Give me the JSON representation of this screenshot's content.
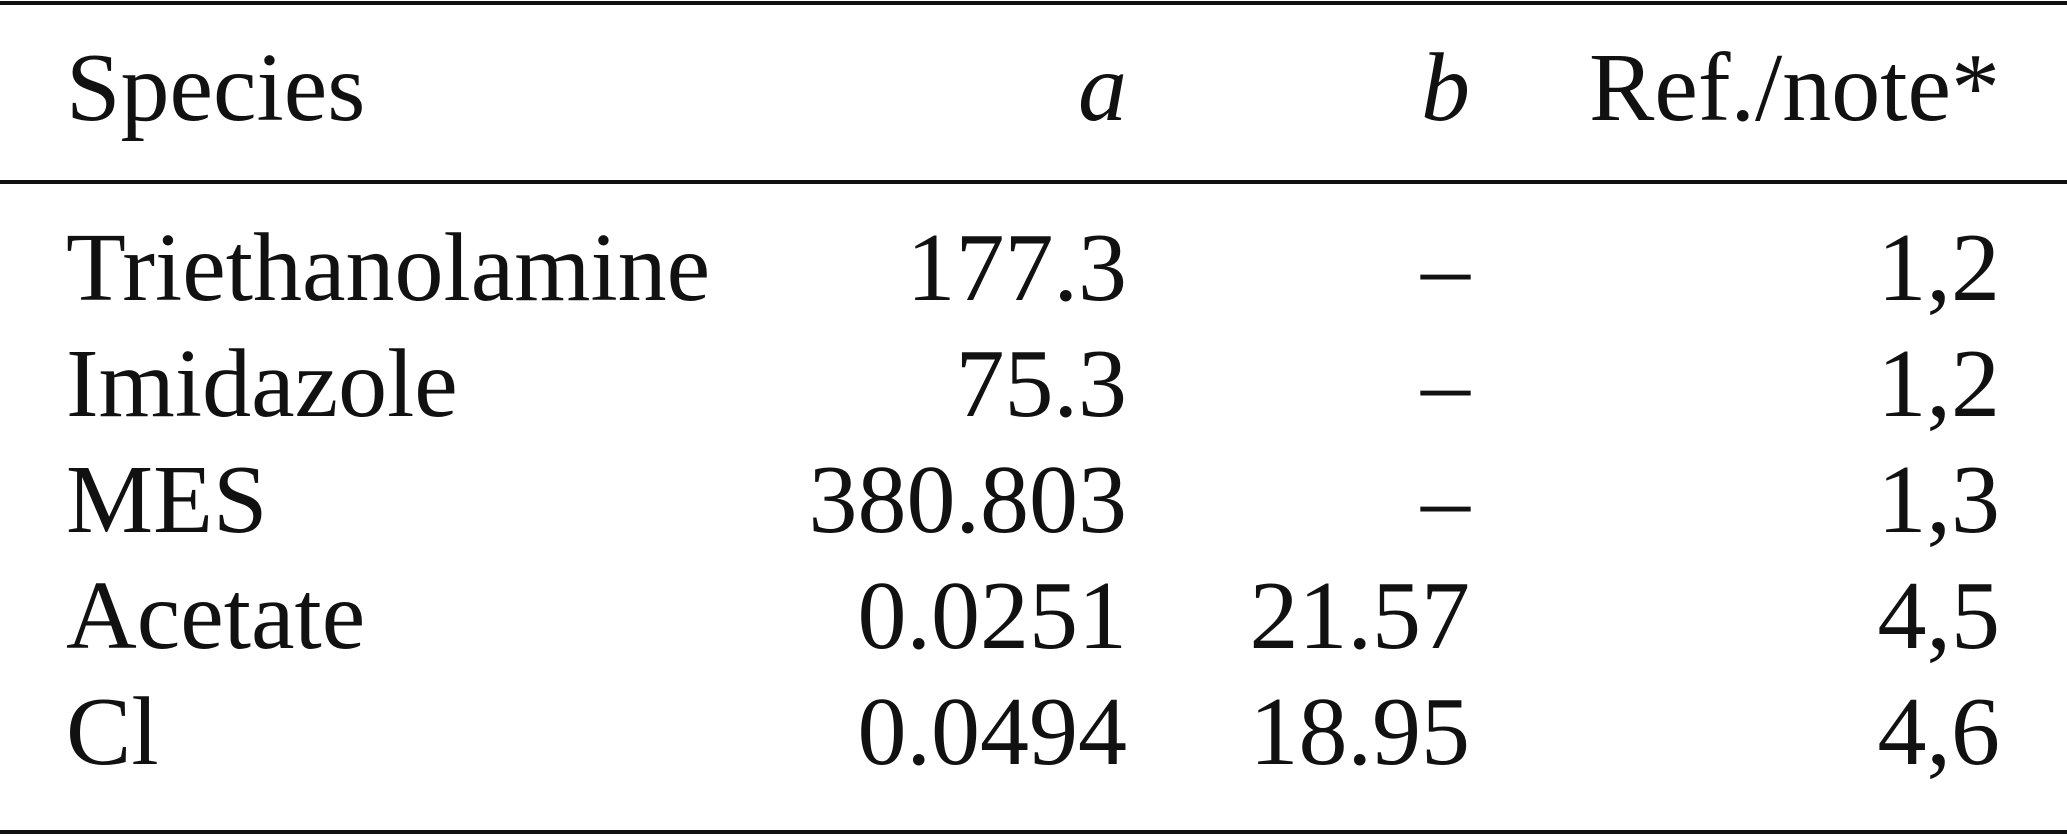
{
  "table": {
    "header": [
      "Species",
      "a",
      "b",
      "Ref./note*"
    ],
    "rows": [
      [
        "Triethanolamine",
        "177.3",
        "–",
        "1,2"
      ],
      [
        "Imidazole",
        "75.3",
        "–",
        "1,2"
      ],
      [
        "MES",
        "380.803",
        "–",
        "1,3"
      ],
      [
        "Acetate",
        "0.0251",
        "21.57",
        "4,5"
      ],
      [
        "Cl",
        "0.0494",
        "18.95",
        "4,6"
      ]
    ]
  }
}
